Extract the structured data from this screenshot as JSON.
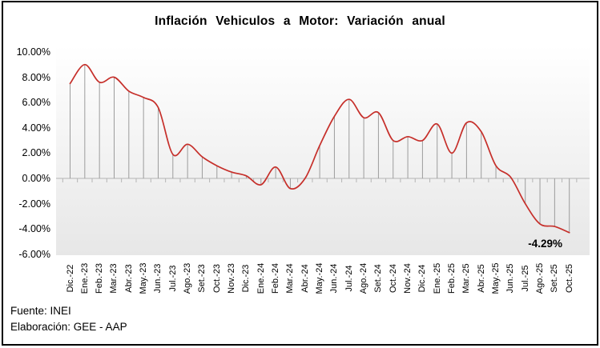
{
  "title": "Inflación Vehiculos a Motor: Variación anual",
  "last_value_label": "-4.29%",
  "footer": {
    "source": "Fuente: INEI",
    "elaboration": "Elaboración: GEE - AAP"
  },
  "colors": {
    "line": "#c62f2a",
    "drop_line": "#9c9c9c",
    "axis": "#b5b5b5",
    "plot_gradient_top": "#ffffff",
    "plot_gradient_bottom": "#e7e7e7",
    "text": "#000000",
    "frame": "#000000"
  },
  "chart_data": {
    "type": "line",
    "smooth": true,
    "drop_lines": true,
    "grid": false,
    "legend": "none",
    "title": "Inflación Vehiculos a Motor: Variación anual",
    "xlabel": "",
    "ylabel": "",
    "ylim": [
      -6,
      10
    ],
    "y_tick_step": 2,
    "y_axis": {
      "ticks": [
        {
          "value": 10,
          "label": "10.00%"
        },
        {
          "value": 8,
          "label": "8.00%"
        },
        {
          "value": 6,
          "label": "6.00%"
        },
        {
          "value": 4,
          "label": "4.00%"
        },
        {
          "value": 2,
          "label": "2.00%"
        },
        {
          "value": 0,
          "label": "0.00%"
        },
        {
          "value": -2,
          "label": "-2.00%"
        },
        {
          "value": -4,
          "label": "-4.00%"
        },
        {
          "value": -6,
          "label": "-6.00%"
        }
      ]
    },
    "categories": [
      "Dic.-22",
      "Ene.-23",
      "Feb.-23",
      "Mar.-23",
      "Abr.-23",
      "May.-23",
      "Jun.-23",
      "Jul.-23",
      "Ago.-23",
      "Set.-23",
      "Oct.-23",
      "Nov.-23",
      "Dic.-23",
      "Ene.-24",
      "Feb.-24",
      "Mar.-24",
      "Abr.-24",
      "May.-24",
      "Jun.-24",
      "Jul.-24",
      "Ago.-24",
      "Set.-24",
      "Oct.-24",
      "Nov.-24",
      "Dic.-24",
      "Ene.-25",
      "Feb.-25",
      "Mar.-25",
      "Abr.-25",
      "May.-25",
      "Jun.-25",
      "Jul.-25",
      "Ago.-25",
      "Set.-25",
      "Oct.-25"
    ],
    "series": [
      {
        "name": "Variación anual",
        "values": [
          7.5,
          9.0,
          7.6,
          8.0,
          6.9,
          6.4,
          5.6,
          1.9,
          2.7,
          1.7,
          1.0,
          0.5,
          0.2,
          -0.5,
          0.9,
          -0.8,
          0.0,
          2.6,
          4.9,
          6.25,
          4.8,
          5.2,
          3.0,
          3.3,
          3.0,
          4.3,
          2.0,
          4.4,
          3.7,
          1.0,
          0.1,
          -2.0,
          -3.6,
          -3.8,
          -4.29
        ]
      }
    ],
    "last_point_label": "-4.29%"
  }
}
